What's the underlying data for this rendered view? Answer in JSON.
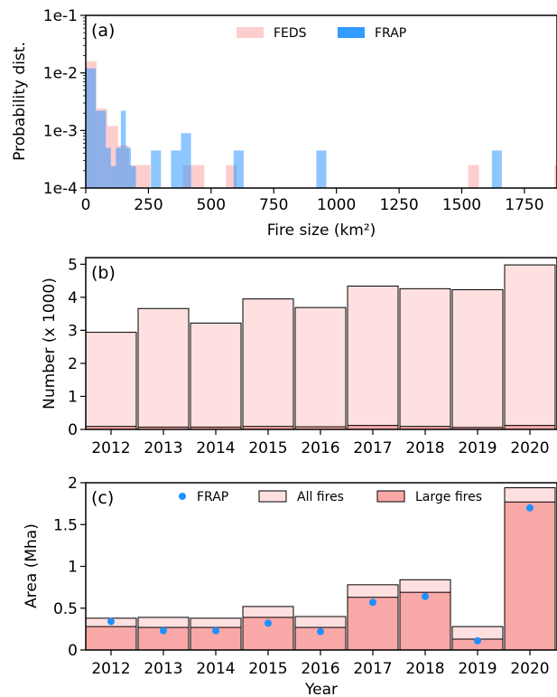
{
  "colors": {
    "feds": "#FBB3B3",
    "frap": "#1E90FF",
    "all_fires": "#FFE0E0",
    "large_fires": "#F9A8A8",
    "edge": "#000000"
  },
  "chart_data": [
    {
      "type": "bar",
      "panel_label": "(a)",
      "xlabel": "Fire size (km²)",
      "ylabel": "Probability dist.",
      "xlim": [
        0,
        1880
      ],
      "ylim": [
        0.0001,
        0.1
      ],
      "yscale": "log",
      "x_ticks": [
        0,
        250,
        500,
        750,
        1000,
        1250,
        1500,
        1750
      ],
      "y_ticks": [
        {
          "value": 0.0001,
          "label": "1e-4"
        },
        {
          "value": 0.001,
          "label": "1e-3"
        },
        {
          "value": 0.01,
          "label": "1e-2"
        },
        {
          "value": 0.1,
          "label": "1e-1"
        }
      ],
      "legend": {
        "position": "top-center",
        "entries": [
          "FEDS",
          "FRAP"
        ]
      },
      "series": [
        {
          "name": "FEDS",
          "bins": [
            {
              "x0": 0,
              "x1": 43,
              "y": 0.016
            },
            {
              "x0": 43,
              "x1": 86,
              "y": 0.0024
            },
            {
              "x0": 86,
              "x1": 129,
              "y": 0.0012
            },
            {
              "x0": 129,
              "x1": 172,
              "y": 0.00055
            },
            {
              "x0": 172,
              "x1": 215,
              "y": 0.00025
            },
            {
              "x0": 215,
              "x1": 258,
              "y": 0.00025
            },
            {
              "x0": 387,
              "x1": 430,
              "y": 0.00025
            },
            {
              "x0": 430,
              "x1": 473,
              "y": 0.00025
            },
            {
              "x0": 559,
              "x1": 602,
              "y": 0.00025
            },
            {
              "x0": 1526,
              "x1": 1569,
              "y": 0.00025
            },
            {
              "x0": 1870,
              "x1": 1913,
              "y": 0.00025
            }
          ]
        },
        {
          "name": "FRAP",
          "bins": [
            {
              "x0": 0,
              "x1": 40,
              "y": 0.012
            },
            {
              "x0": 40,
              "x1": 60,
              "y": 0.0022
            },
            {
              "x0": 60,
              "x1": 80,
              "y": 0.0022
            },
            {
              "x0": 80,
              "x1": 100,
              "y": 0.0005
            },
            {
              "x0": 100,
              "x1": 120,
              "y": 0.00024
            },
            {
              "x0": 120,
              "x1": 140,
              "y": 0.0005
            },
            {
              "x0": 140,
              "x1": 160,
              "y": 0.0022
            },
            {
              "x0": 160,
              "x1": 180,
              "y": 0.0005
            },
            {
              "x0": 180,
              "x1": 200,
              "y": 0.00024
            },
            {
              "x0": 260,
              "x1": 300,
              "y": 0.00045
            },
            {
              "x0": 340,
              "x1": 380,
              "y": 0.00045
            },
            {
              "x0": 380,
              "x1": 420,
              "y": 0.0009
            },
            {
              "x0": 590,
              "x1": 630,
              "y": 0.00045
            },
            {
              "x0": 920,
              "x1": 960,
              "y": 0.00045
            },
            {
              "x0": 1620,
              "x1": 1660,
              "y": 0.00045
            }
          ]
        }
      ]
    },
    {
      "type": "bar",
      "panel_label": "(b)",
      "xlabel": "",
      "ylabel": "Number (x 1000)",
      "ylim": [
        0,
        5.2
      ],
      "y_ticks": [
        0,
        1,
        2,
        3,
        4,
        5
      ],
      "categories": [
        "2012",
        "2013",
        "2014",
        "2015",
        "2016",
        "2017",
        "2018",
        "2019",
        "2020"
      ],
      "series": [
        {
          "values": [
            2.94,
            3.66,
            3.22,
            3.95,
            3.69,
            4.34,
            4.26,
            4.23,
            4.98
          ]
        },
        {
          "values": [
            0.09,
            0.07,
            0.07,
            0.09,
            0.08,
            0.12,
            0.09,
            0.06,
            0.12
          ]
        }
      ]
    },
    {
      "type": "bar",
      "panel_label": "(c)",
      "xlabel": "Year",
      "ylabel": "Area (Mha)",
      "ylim": [
        0,
        2.0
      ],
      "y_ticks": [
        {
          "value": 0,
          "label": "0"
        },
        {
          "value": 0.5,
          "label": "0.5"
        },
        {
          "value": 1,
          "label": "1"
        },
        {
          "value": 1.5,
          "label": "1.5"
        },
        {
          "value": 2,
          "label": "2"
        }
      ],
      "categories": [
        "2012",
        "2013",
        "2014",
        "2015",
        "2016",
        "2017",
        "2018",
        "2019",
        "2020"
      ],
      "legend": {
        "position": "top",
        "entries": [
          "FRAP",
          "All fires",
          "Large fires"
        ]
      },
      "series": [
        {
          "name": "All fires",
          "values": [
            0.38,
            0.39,
            0.38,
            0.52,
            0.4,
            0.78,
            0.84,
            0.28,
            1.94
          ]
        },
        {
          "name": "Large fires",
          "values": [
            0.28,
            0.27,
            0.27,
            0.39,
            0.27,
            0.63,
            0.69,
            0.13,
            1.77
          ]
        },
        {
          "name": "FRAP",
          "values": [
            0.34,
            0.23,
            0.23,
            0.32,
            0.22,
            0.57,
            0.64,
            0.11,
            1.7
          ]
        }
      ]
    }
  ]
}
